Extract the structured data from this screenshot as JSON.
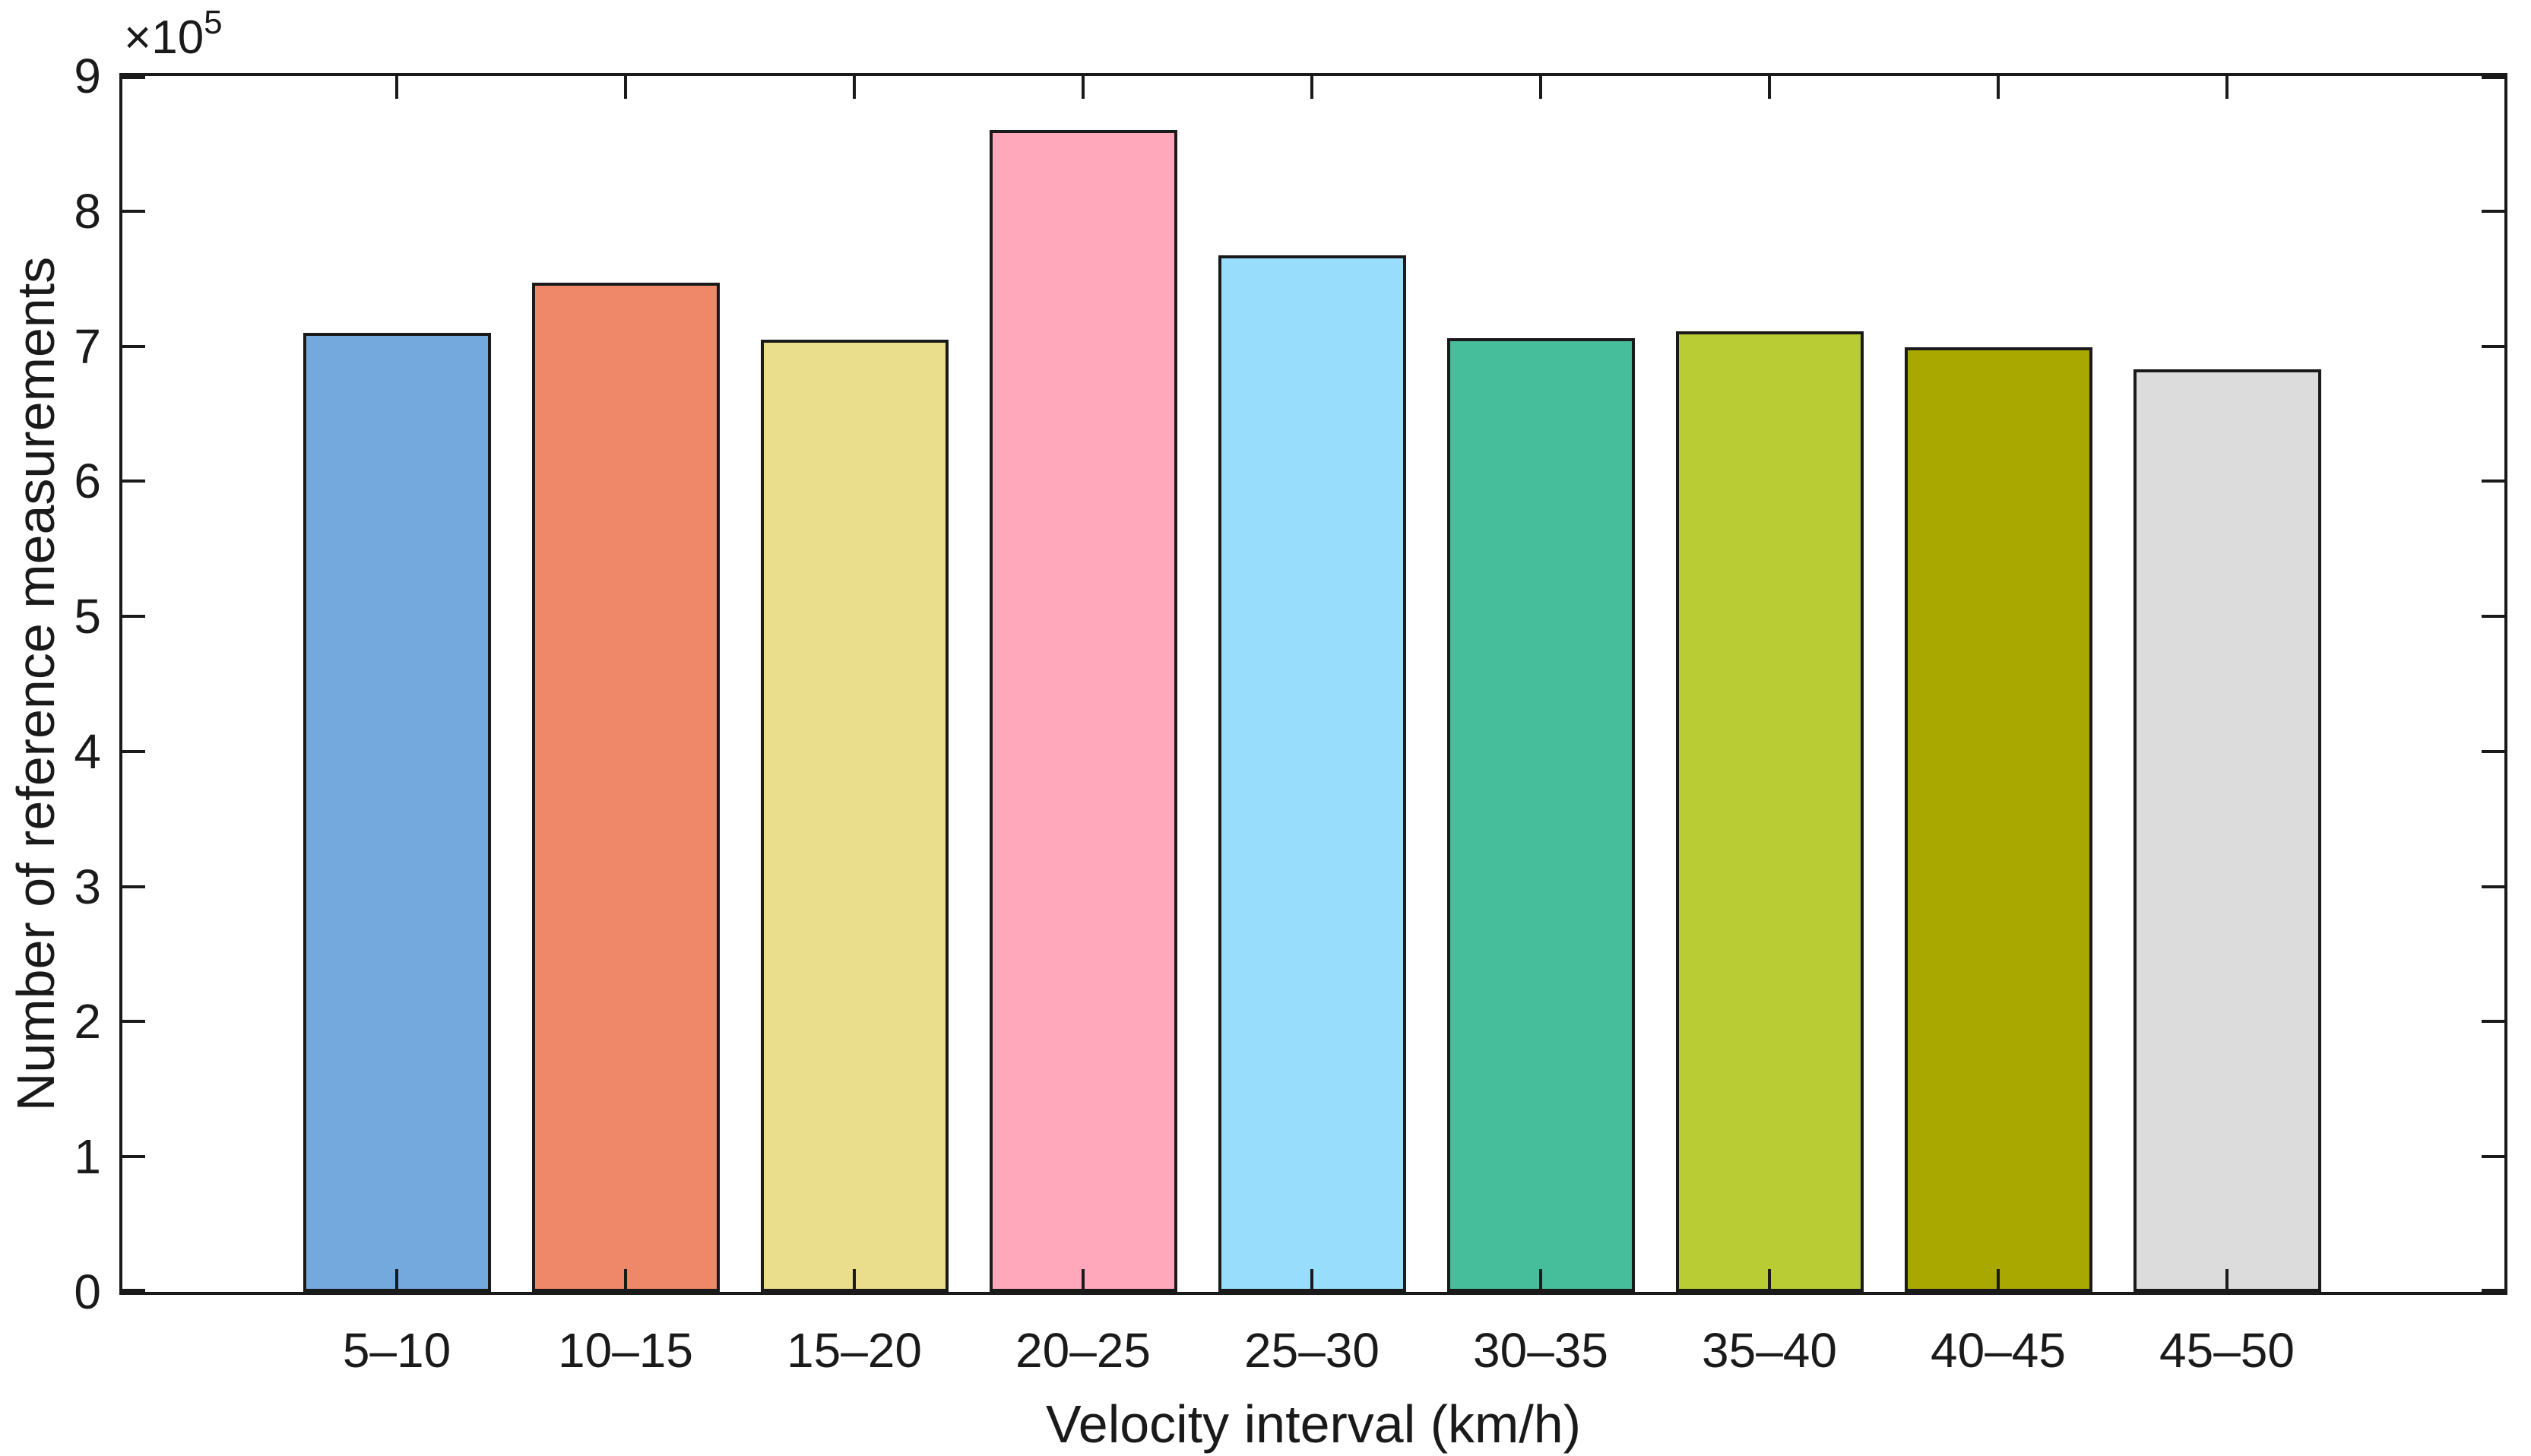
{
  "figure": {
    "background": "#ffffff",
    "text_color": "#1a1a1a",
    "axis_color": "#1a1a1a"
  },
  "chart_data": {
    "type": "bar",
    "title": "",
    "categories": [
      "5–10",
      "10–15",
      "15–20",
      "20–25",
      "25–30",
      "30–35",
      "35–40",
      "40–45",
      "45–50"
    ],
    "values": [
      710000,
      747000,
      705000,
      860000,
      767000,
      706000,
      711000,
      699000,
      683000
    ],
    "values_in_1e5_units": [
      7.1,
      7.47,
      7.05,
      8.6,
      7.67,
      7.06,
      7.11,
      6.99,
      6.83
    ],
    "bar_colors": [
      "#73A9DC",
      "#EE8868",
      "#EADE8C",
      "#FFA8BB",
      "#99DDFD",
      "#46BD9B",
      "#BACC33",
      "#A9A800",
      "#DCDCDC"
    ],
    "bar_edge_color": "#1a1a1a",
    "bar_width_fraction": 0.8,
    "xlabel": "Velocity interval (km/h)",
    "ylabel": "Number of reference measurements",
    "ylim": [
      0,
      900000
    ],
    "ytick_values": [
      0,
      1,
      2,
      3,
      4,
      5,
      6,
      7,
      8,
      9
    ],
    "ytick_labels": [
      "0",
      "1",
      "2",
      "3",
      "4",
      "5",
      "6",
      "7",
      "8",
      "9"
    ],
    "y_exponent_label": {
      "base": "×10",
      "power": "5"
    },
    "grid": false,
    "legend": false,
    "box": true,
    "tick_direction": "in"
  }
}
